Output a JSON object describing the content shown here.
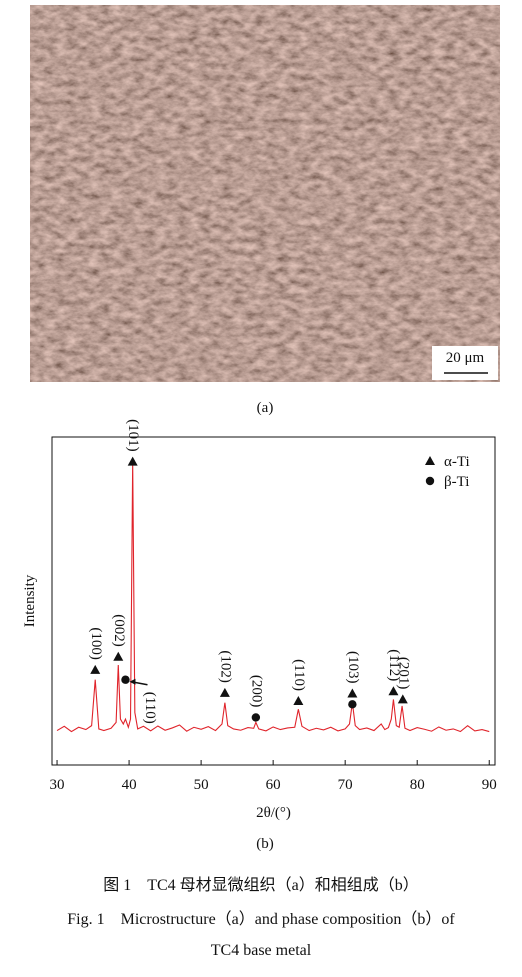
{
  "figure": {
    "panel_a": {
      "scale_bar": "20 μm",
      "label": "(a)"
    },
    "panel_b": {
      "label": "(b)"
    },
    "caption_cn": "图 1　TC4 母材显微组织（a）和相组成（b）",
    "caption_en": [
      "Fig. 1　Microstructure（a）and phase composition（b）of",
      "TC4 base metal"
    ]
  },
  "chart_data": {
    "type": "line",
    "xlabel": "2θ/(°)",
    "ylabel": "Intensity",
    "xlim": [
      29.3,
      90.8
    ],
    "ylim": [
      0,
      100
    ],
    "xticks": [
      30,
      40,
      50,
      60,
      70,
      80,
      90
    ],
    "x": [
      30,
      31,
      32,
      33,
      34,
      34.8,
      35.3,
      35.8,
      36.5,
      37.5,
      38.2,
      38.5,
      38.8,
      39.2,
      39.5,
      39.9,
      40.2,
      40.5,
      40.8,
      41.2,
      42,
      43,
      44,
      45,
      46,
      47,
      48,
      49,
      50,
      51,
      52,
      52.9,
      53.3,
      53.7,
      54.5,
      55.5,
      56.5,
      57.3,
      57.6,
      58,
      59,
      60,
      61,
      62,
      63,
      63.5,
      64,
      65,
      66,
      67,
      68,
      69,
      70,
      70.6,
      71,
      71.4,
      72,
      73,
      74,
      75,
      75.5,
      76,
      76.4,
      76.7,
      77.1,
      77.5,
      77.9,
      78.3,
      79,
      80,
      81,
      82,
      83,
      84,
      85,
      86,
      87,
      88,
      89,
      90
    ],
    "series": [
      {
        "color": "#e0242b",
        "values": [
          10.5,
          11.8,
          10.2,
          11.5,
          10.8,
          12,
          26,
          11,
          10.5,
          11.2,
          13,
          30.5,
          14,
          12.5,
          14,
          11.5,
          14,
          92.4,
          16,
          11,
          11.8,
          10.4,
          11.9,
          10.6,
          11.3,
          12.2,
          10.3,
          11.5,
          10.9,
          11.7,
          10.5,
          12.5,
          19,
          12,
          11,
          10.6,
          11.4,
          11.2,
          13,
          11,
          10.4,
          11.6,
          10.8,
          11.3,
          11.5,
          17,
          11.8,
          10.5,
          11.2,
          10.7,
          11.5,
          10.4,
          11,
          12.5,
          19,
          12,
          10.8,
          11.3,
          10.5,
          12.5,
          10.8,
          11.4,
          14,
          20,
          12,
          11.5,
          18,
          11.2,
          10.5,
          11.4,
          10.9,
          10.3,
          11.6,
          10.6,
          11,
          10.2,
          12,
          10.4,
          10.8,
          10.2
        ]
      }
    ],
    "annotations": [
      {
        "label": "(100)",
        "x": 35.3,
        "markers": [
          {
            "marker": "triangle",
            "y": 29
          }
        ]
      },
      {
        "label": "(002)",
        "x": 38.5,
        "markers": [
          {
            "marker": "triangle",
            "y": 33
          }
        ]
      },
      {
        "label": "(110)",
        "x": 39.5,
        "markers": [
          {
            "marker": "circle",
            "y": 26
          }
        ]
      },
      {
        "label": "(101)",
        "x": 40.5,
        "markers": [
          {
            "marker": "triangle",
            "y": 92.5
          }
        ]
      },
      {
        "label": "(102)",
        "x": 53.3,
        "markers": [
          {
            "marker": "triangle",
            "y": 22
          }
        ]
      },
      {
        "label": "(200)",
        "x": 57.6,
        "markers": [
          {
            "marker": "circle",
            "y": 14.5
          }
        ]
      },
      {
        "label": "(110)",
        "x": 63.5,
        "markers": [
          {
            "marker": "triangle",
            "y": 19.5
          }
        ]
      },
      {
        "label": "(103)",
        "x": 71,
        "markers": [
          {
            "marker": "triangle",
            "y": 21.8
          },
          {
            "marker": "circle",
            "y": 18.5
          }
        ]
      },
      {
        "label": "(112)",
        "x": 76.7,
        "markers": [
          {
            "marker": "triangle",
            "y": 22.5
          }
        ]
      },
      {
        "label": "(201)",
        "x": 78,
        "markers": [
          {
            "marker": "triangle",
            "y": 20
          }
        ]
      }
    ],
    "legend": [
      {
        "label": "α-Ti",
        "marker": "triangle"
      },
      {
        "label": "β-Ti",
        "marker": "circle"
      }
    ],
    "legend_position": "upper right"
  }
}
